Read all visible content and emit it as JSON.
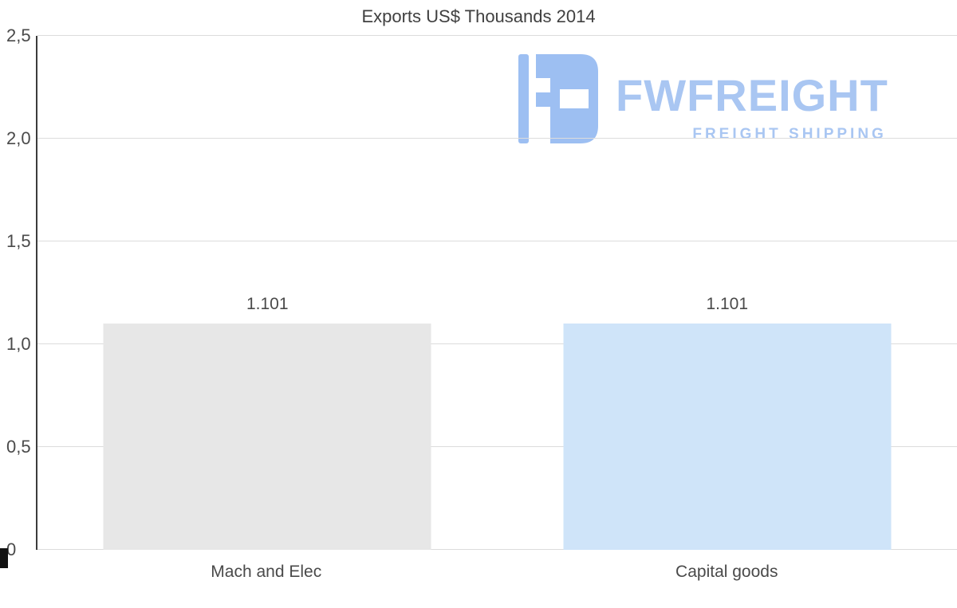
{
  "chart_data": {
    "type": "bar",
    "title": "Exports US$ Thousands 2014",
    "categories": [
      "Mach and Elec",
      "Capital goods"
    ],
    "values": [
      1.101,
      1.101
    ],
    "value_labels": [
      "1.101",
      "1.101"
    ],
    "bar_colors": [
      "#e7e7e7",
      "#cfe4f9"
    ],
    "xlabel": "",
    "ylabel": "",
    "ylim": [
      0,
      2.5
    ],
    "yticks": [
      {
        "label": "0",
        "value": 0
      },
      {
        "label": "0,5",
        "value": 0.5
      },
      {
        "label": "1,0",
        "value": 1.0
      },
      {
        "label": "1,5",
        "value": 1.5
      },
      {
        "label": "2,0",
        "value": 2.0
      },
      {
        "label": "2,5",
        "value": 2.5
      }
    ],
    "grid": true,
    "legend": false,
    "bar_width_fraction": 0.713
  },
  "watermark": {
    "brand": "FWFREIGHT",
    "tagline": "FREIGHT SHIPPING",
    "color": "#a9c6f2",
    "icon_color": "#9dbff2"
  },
  "colors": {
    "gridline": "#dcdcdc",
    "axis": "#3c3c3c",
    "text": "#4a4a4a",
    "background": "#ffffff"
  }
}
